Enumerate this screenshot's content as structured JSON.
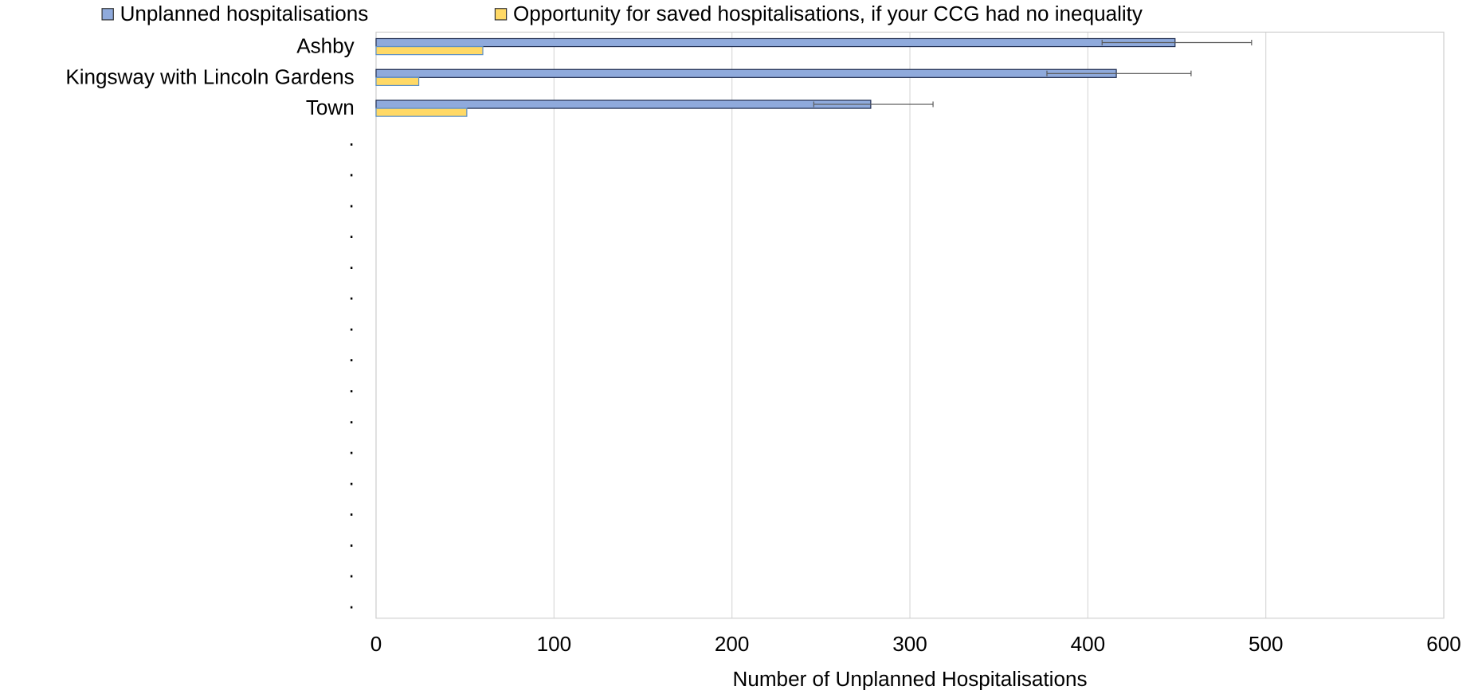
{
  "chart_data": {
    "type": "bar",
    "orientation": "horizontal",
    "x_label": "Number of Unplanned Hospitalisations",
    "categories": [
      "Ashby",
      "Kingsway with Lincoln Gardens",
      "Town",
      ".",
      ".",
      ".",
      ".",
      ".",
      ".",
      ".",
      ".",
      ".",
      ".",
      ".",
      ".",
      ".",
      ".",
      ".",
      "."
    ],
    "series": [
      {
        "name": "Unplanned hospitalisations",
        "color": "#8faadc",
        "border": "#1f2d50",
        "values": [
          449,
          416,
          278,
          null,
          null,
          null,
          null,
          null,
          null,
          null,
          null,
          null,
          null,
          null,
          null,
          null,
          null,
          null,
          null
        ],
        "error_lower": [
          408,
          377,
          246,
          null,
          null,
          null,
          null,
          null,
          null,
          null,
          null,
          null,
          null,
          null,
          null,
          null,
          null,
          null,
          null
        ],
        "error_upper": [
          492,
          458,
          313,
          null,
          null,
          null,
          null,
          null,
          null,
          null,
          null,
          null,
          null,
          null,
          null,
          null,
          null,
          null,
          null
        ]
      },
      {
        "name": "Opportunity for saved hospitalisations, if your CCG had no inequality",
        "color": "#ffd966",
        "border": "#5b8fc7",
        "values": [
          60,
          24,
          51,
          null,
          null,
          null,
          null,
          null,
          null,
          null,
          null,
          null,
          null,
          null,
          null,
          null,
          null,
          null,
          null
        ]
      }
    ],
    "xlim": [
      0,
      600
    ],
    "xticks": [
      0,
      100,
      200,
      300,
      400,
      500,
      600
    ],
    "grid": true,
    "legend": "top"
  }
}
